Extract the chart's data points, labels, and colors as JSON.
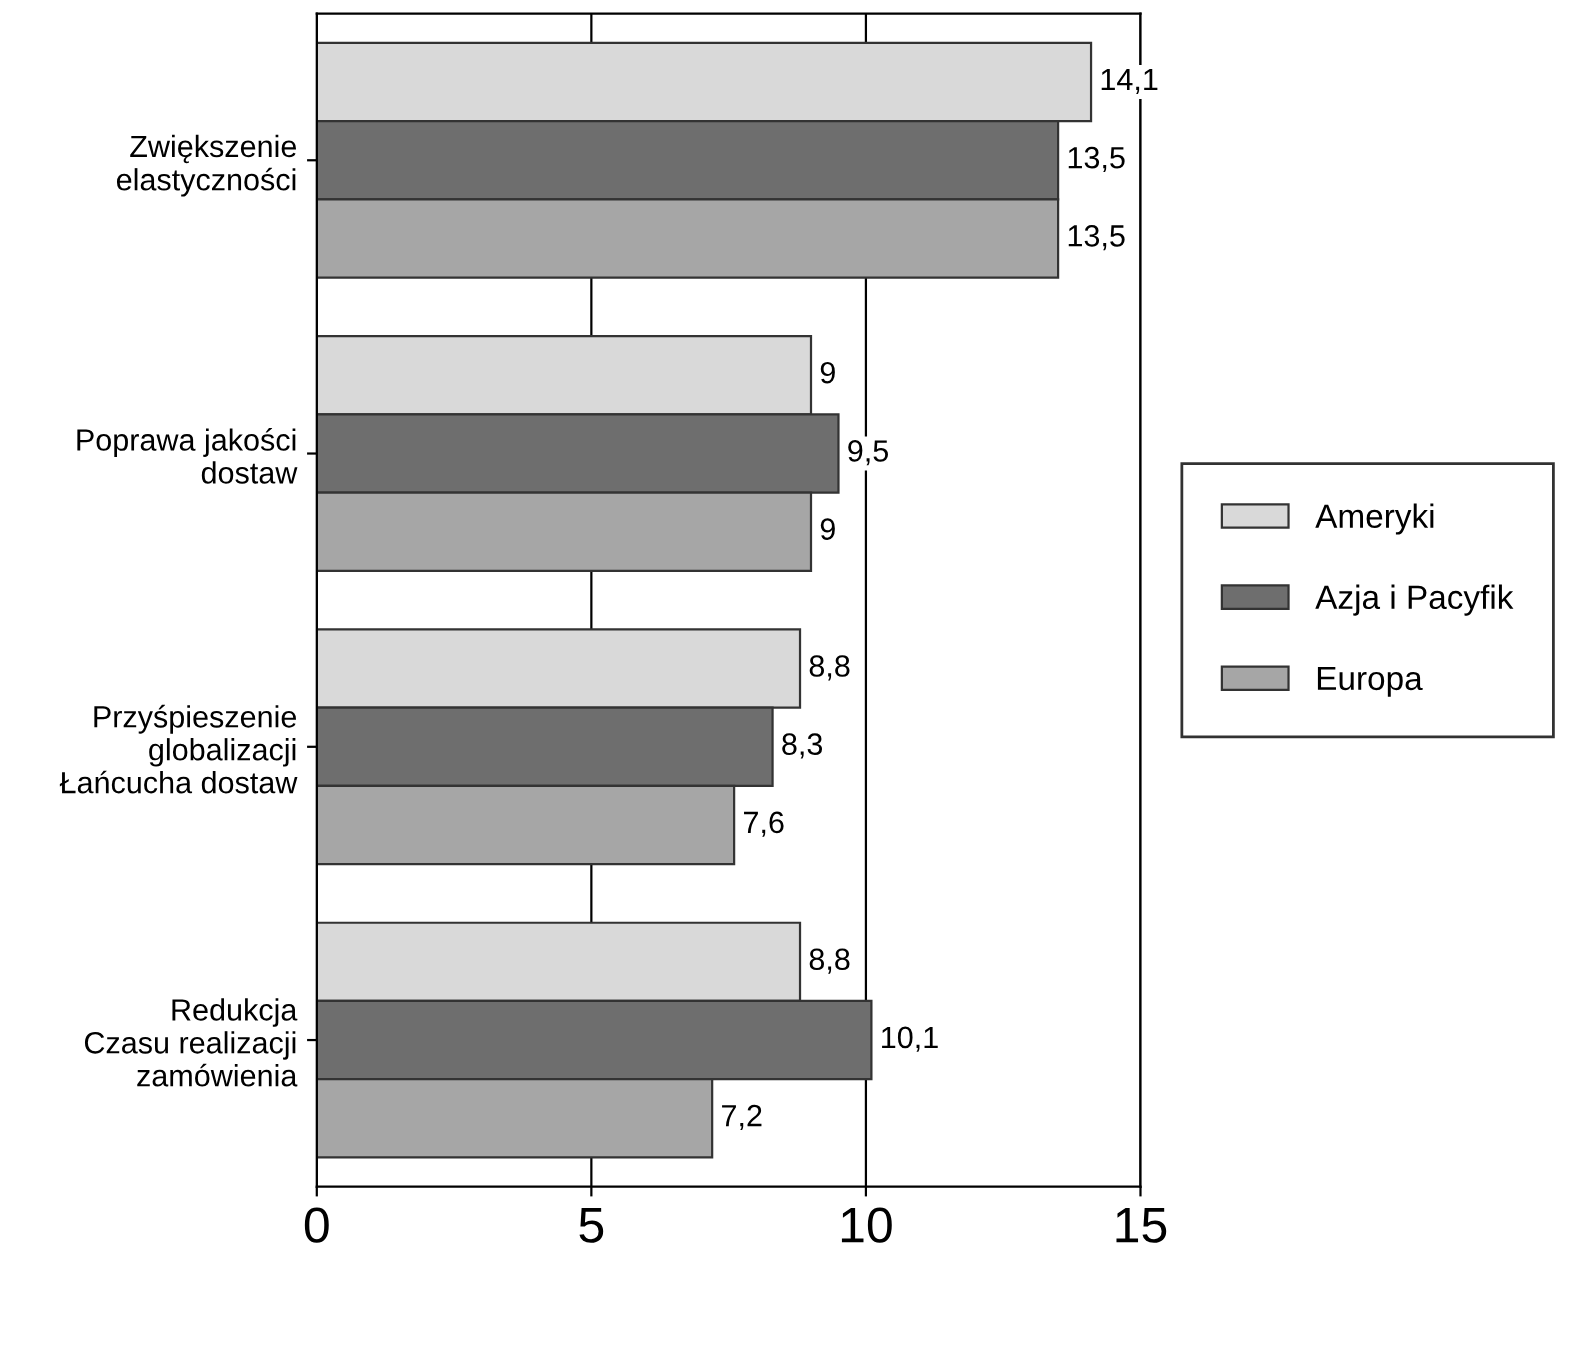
{
  "chart_data": {
    "type": "bar",
    "orientation": "horizontal",
    "categories": [
      "Zwiększenie\nelastyczności",
      "Poprawa jakości\ndostaw",
      "Przyśpieszenie\nglobalizacji\nŁańcucha dostaw",
      "Redukcja\nCzasu realizacji\nzamówienia"
    ],
    "series": [
      {
        "name": "Ameryki",
        "color": "#d9d9d9",
        "values": [
          14.1,
          9,
          8.8,
          8.8
        ],
        "value_labels": [
          "14,1",
          "9",
          "8,8",
          "8,8"
        ]
      },
      {
        "name": "Azja i Pacyfik",
        "color": "#6e6e6e",
        "values": [
          13.5,
          9.5,
          8.3,
          10.1
        ],
        "value_labels": [
          "13,5",
          "9,5",
          "8,3",
          "10,1"
        ]
      },
      {
        "name": "Europa",
        "color": "#a6a6a6",
        "values": [
          13.5,
          9,
          7.6,
          7.2
        ],
        "value_labels": [
          "13,5",
          "9",
          "7,6",
          "7,2"
        ]
      }
    ],
    "xlim": [
      0,
      15
    ],
    "xticks": [
      0,
      5,
      10,
      15
    ],
    "grid": "x",
    "legend": "right"
  }
}
